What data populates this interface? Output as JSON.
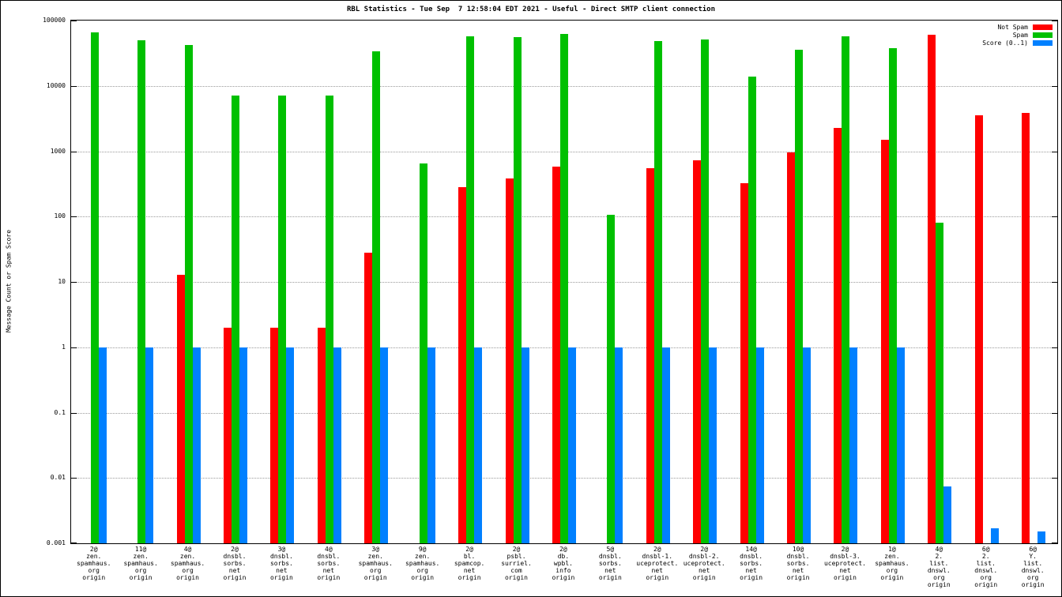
{
  "title": "RBL Statistics - Tue Sep  7 12:58:04 EDT 2021 - Useful - Direct SMTP client connection",
  "ylabel": "Message Count or Spam Score",
  "legend": [
    {
      "label": "Not Spam",
      "color": "#ff0000"
    },
    {
      "label": "Spam",
      "color": "#00c000"
    },
    {
      "label": "Score (0..1)",
      "color": "#0080ff"
    }
  ],
  "chart_data": {
    "type": "bar",
    "y_scale": "log",
    "ylim": [
      0.001,
      100000
    ],
    "grid": true,
    "legend_position": "top-right",
    "title": "RBL Statistics - Tue Sep  7 12:58:04 EDT 2021 - Useful - Direct SMTP client connection",
    "xlabel": "",
    "ylabel": "Message Count or Spam Score",
    "y_ticks": [
      "100000",
      "10000",
      "1000",
      "100",
      "10",
      "1",
      "0.1",
      "0.01",
      "0.001"
    ],
    "categories": [
      "2@zen.spamhaus.org origin",
      "11@zen.spamhaus.org origin",
      "4@zen.spamhaus.org origin",
      "2@dnsbl.sorbs.net origin",
      "3@dnsbl.sorbs.net origin",
      "4@dnsbl.sorbs.net origin",
      "3@zen.spamhaus.org origin",
      "9@zen.spamhaus.org origin",
      "2@bl.spamcop.net origin",
      "2@psbl.surriel.com origin",
      "2@db.wpbl.info origin",
      "5@dnsbl.sorbs.net origin",
      "2@dnsbl-1.uceprotect.net origin",
      "2@dnsbl-2.uceprotect.net origin",
      "14@dnsbl.sorbs.net origin",
      "10@dnsbl.sorbs.net origin",
      "2@dnsbl-3.uceprotect.net origin",
      "1@zen.spamhaus.org origin",
      "4@2.list.dnswl.org origin",
      "6@2.list.dnswl.org origin",
      "6@Y.list.dnswl.org origin"
    ],
    "category_label_lines": [
      [
        "2@",
        "zen.",
        "spamhaus.",
        "org",
        "origin"
      ],
      [
        "11@",
        "zen.",
        "spamhaus.",
        "org",
        "origin"
      ],
      [
        "4@",
        "zen.",
        "spamhaus.",
        "org",
        "origin"
      ],
      [
        "2@",
        "dnsbl.",
        "sorbs.",
        "net",
        "origin"
      ],
      [
        "3@",
        "dnsbl.",
        "sorbs.",
        "net",
        "origin"
      ],
      [
        "4@",
        "dnsbl.",
        "sorbs.",
        "net",
        "origin"
      ],
      [
        "3@",
        "zen.",
        "spamhaus.",
        "org",
        "origin"
      ],
      [
        "9@",
        "zen.",
        "spamhaus.",
        "org",
        "origin"
      ],
      [
        "2@",
        "bl.",
        "spamcop.",
        "net",
        "origin"
      ],
      [
        "2@",
        "psbl.",
        "surriel.",
        "com",
        "origin"
      ],
      [
        "2@",
        "db.",
        "wpbl.",
        "info",
        "origin"
      ],
      [
        "5@",
        "dnsbl.",
        "sorbs.",
        "net",
        "origin"
      ],
      [
        "2@",
        "dnsbl-1.",
        "uceprotect.",
        "net",
        "origin"
      ],
      [
        "2@",
        "dnsbl-2.",
        "uceprotect.",
        "net",
        "origin"
      ],
      [
        "14@",
        "dnsbl.",
        "sorbs.",
        "net",
        "origin"
      ],
      [
        "10@",
        "dnsbl.",
        "sorbs.",
        "net",
        "origin"
      ],
      [
        "2@",
        "dnsbl-3.",
        "uceprotect.",
        "net",
        "origin"
      ],
      [
        "1@",
        "zen.",
        "spamhaus.",
        "org",
        "origin"
      ],
      [
        "4@",
        "2.",
        "list.",
        "dnswl.",
        "org",
        "origin"
      ],
      [
        "6@",
        "2.",
        "list.",
        "dnswl.",
        "org",
        "origin"
      ],
      [
        "6@",
        "Y.",
        "list.",
        "dnswl.",
        "org",
        "origin"
      ]
    ],
    "series": [
      {
        "name": "Not Spam",
        "color": "#ff0000",
        "values": [
          null,
          null,
          13,
          2,
          2,
          2,
          28,
          null,
          280,
          380,
          580,
          null,
          550,
          730,
          320,
          950,
          2300,
          1500,
          60000,
          3500,
          3900
        ]
      },
      {
        "name": "Spam",
        "color": "#00c000",
        "values": [
          65000,
          50000,
          42000,
          7200,
          7200,
          7200,
          34000,
          650,
          58000,
          55000,
          63000,
          105,
          49000,
          52000,
          14000,
          36000,
          58000,
          38000,
          80,
          null,
          null
        ]
      },
      {
        "name": "Score (0..1)",
        "color": "#0080ff",
        "values": [
          1,
          1,
          1,
          1,
          1,
          1,
          1,
          1,
          1,
          1,
          1,
          1,
          1,
          1,
          1,
          1,
          1,
          1,
          0.0075,
          0.0017,
          0.0015
        ]
      }
    ]
  }
}
